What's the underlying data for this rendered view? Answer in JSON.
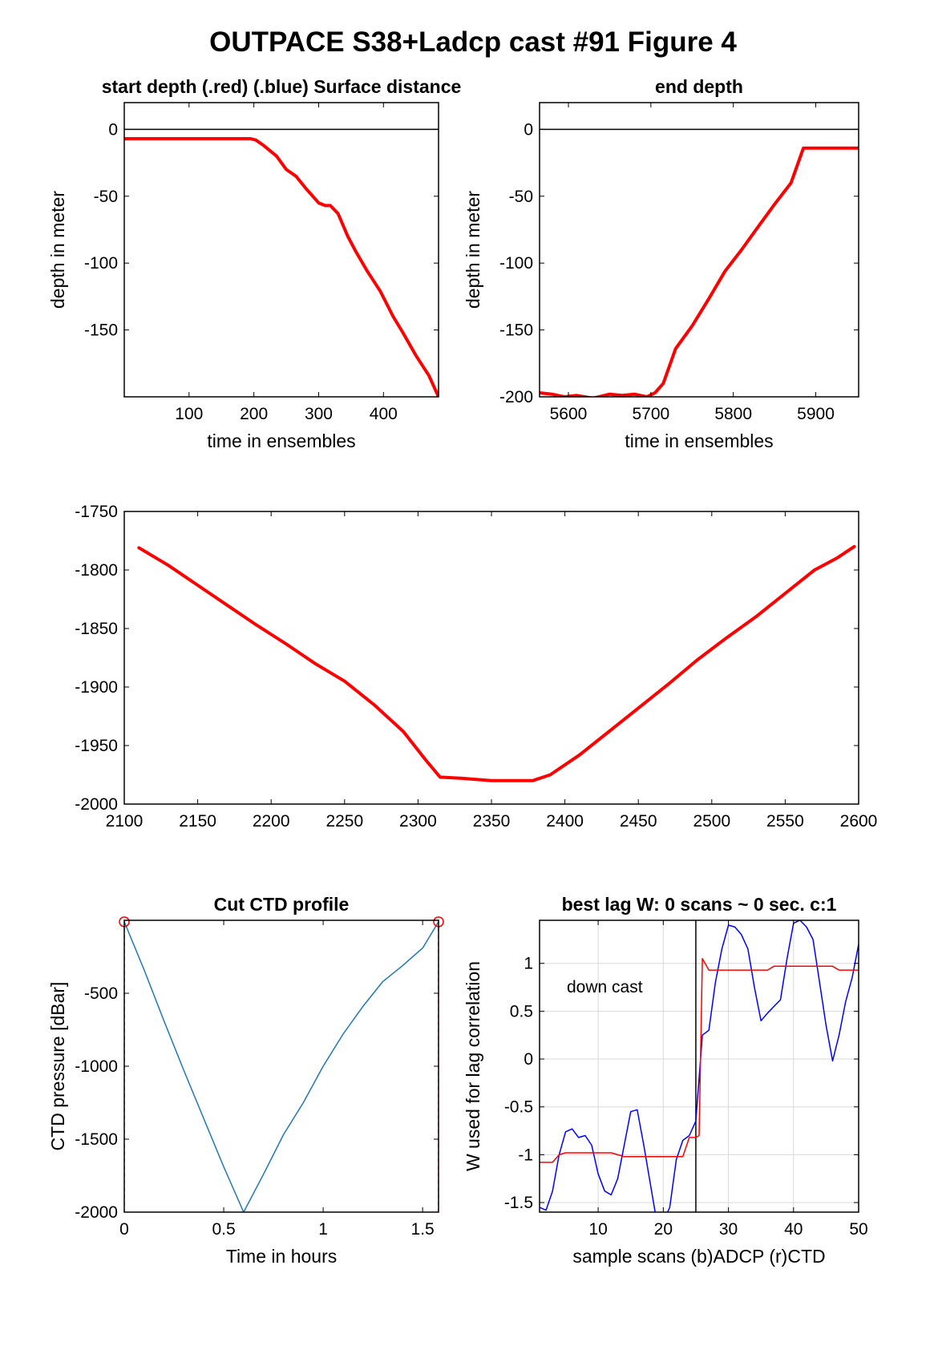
{
  "figure": {
    "title": "OUTPACE S38+Ladcp cast #91   Figure 4"
  },
  "chart_data": [
    {
      "id": "p1",
      "type": "line",
      "title": "start depth (.red) (.blue) Surface distance",
      "xlabel": "time in ensembles",
      "ylabel": "depth in meter",
      "xlim": [
        0,
        485
      ],
      "ylim": [
        -200,
        20
      ],
      "xticks": [
        100,
        200,
        300,
        400
      ],
      "yticks": [
        0,
        -50,
        -100,
        -150
      ],
      "grid": false,
      "reference_line_y": 0,
      "series": [
        {
          "color": "#ff0000",
          "width": 4,
          "x": [
            0,
            60,
            120,
            180,
            195,
            203,
            215,
            235,
            250,
            265,
            280,
            300,
            310,
            318,
            330,
            345,
            358,
            375,
            395,
            415,
            430,
            450,
            470,
            485
          ],
          "y": [
            -7,
            -7,
            -7,
            -7,
            -7,
            -8,
            -12,
            -20,
            -30,
            -35,
            -44,
            -55,
            -57,
            -57,
            -63,
            -80,
            -92,
            -106,
            -121,
            -140,
            -152,
            -169,
            -184,
            -200
          ]
        }
      ]
    },
    {
      "id": "p2",
      "type": "line",
      "title": "end depth",
      "xlabel": "time in ensembles",
      "ylabel": "depth in meter",
      "xlim": [
        5565,
        5952
      ],
      "ylim": [
        -200,
        20
      ],
      "xticks": [
        5600,
        5700,
        5800,
        5900
      ],
      "yticks": [
        0,
        -50,
        -100,
        -150,
        -200
      ],
      "grid": false,
      "reference_line_y": 0,
      "series": [
        {
          "color": "#ff0000",
          "width": 4,
          "x": [
            5565,
            5580,
            5595,
            5610,
            5630,
            5650,
            5665,
            5680,
            5695,
            5705,
            5715,
            5730,
            5750,
            5770,
            5790,
            5810,
            5830,
            5850,
            5870,
            5885,
            5900,
            5930,
            5952
          ],
          "y": [
            -197,
            -198,
            -200,
            -199,
            -201,
            -198,
            -199,
            -198,
            -200,
            -197,
            -190,
            -164,
            -147,
            -127,
            -106,
            -90,
            -73,
            -56,
            -40,
            -14,
            -14,
            -14,
            -14
          ]
        }
      ]
    },
    {
      "id": "p3",
      "type": "line",
      "title": "",
      "xlabel": "",
      "ylabel": "",
      "xlim": [
        2100,
        2600
      ],
      "ylim": [
        -2000,
        -1750
      ],
      "xticks": [
        2100,
        2150,
        2200,
        2250,
        2300,
        2350,
        2400,
        2450,
        2500,
        2550,
        2600
      ],
      "yticks": [
        -1750,
        -1800,
        -1850,
        -1900,
        -1950,
        -2000
      ],
      "grid": false,
      "series": [
        {
          "color": "#ff0000",
          "width": 4,
          "x": [
            2110,
            2130,
            2150,
            2170,
            2190,
            2210,
            2230,
            2250,
            2270,
            2290,
            2305,
            2315,
            2330,
            2350,
            2370,
            2378,
            2390,
            2410,
            2430,
            2450,
            2470,
            2490,
            2510,
            2530,
            2550,
            2570,
            2585,
            2597
          ],
          "y": [
            -1781,
            -1796,
            -1813,
            -1830,
            -1847,
            -1863,
            -1880,
            -1895,
            -1915,
            -1938,
            -1962,
            -1977,
            -1978,
            -1980,
            -1980,
            -1980,
            -1975,
            -1958,
            -1938,
            -1918,
            -1898,
            -1877,
            -1858,
            -1840,
            -1820,
            -1800,
            -1790,
            -1780
          ]
        }
      ]
    },
    {
      "id": "p4",
      "type": "line",
      "title": "Cut CTD profile",
      "xlabel": "Time in hours",
      "ylabel": "CTD pressure [dBar]",
      "xlim": [
        0,
        1.58
      ],
      "ylim": [
        -2000,
        0
      ],
      "xticks": [
        0,
        0.5,
        1,
        1.5
      ],
      "yticks": [
        -500,
        -1000,
        -1500,
        -2000
      ],
      "grid": false,
      "cut_lines_x": [
        0,
        1.58
      ],
      "cut_markers": [
        {
          "x": 0,
          "y": -10
        },
        {
          "x": 1.58,
          "y": -10
        }
      ],
      "series": [
        {
          "color": "#1f77b4",
          "width": 1.5,
          "x": [
            0,
            0.1,
            0.2,
            0.3,
            0.4,
            0.5,
            0.6,
            0.7,
            0.8,
            0.9,
            1.0,
            1.1,
            1.2,
            1.3,
            1.4,
            1.5,
            1.58
          ],
          "y": [
            -10,
            -340,
            -690,
            -1030,
            -1360,
            -1690,
            -2000,
            -1740,
            -1470,
            -1250,
            -1000,
            -780,
            -590,
            -420,
            -310,
            -190,
            -10
          ]
        }
      ]
    },
    {
      "id": "p5",
      "type": "line",
      "title": "best lag W: 0 scans ~ 0 sec.  c:1",
      "xlabel": "sample scans (b)ADCP (r)CTD",
      "ylabel": "W used for lag correlation",
      "xlim": [
        1,
        50
      ],
      "ylim": [
        -1.6,
        1.45
      ],
      "xticks": [
        10,
        20,
        30,
        40,
        50
      ],
      "yticks": [
        1,
        0.5,
        0,
        -0.5,
        -1,
        -1.5
      ],
      "grid": true,
      "vline_x": 25,
      "annotation": "down cast",
      "series": [
        {
          "name": "(b)ADCP",
          "color": "#0000ff",
          "width": 1.5,
          "x": [
            1,
            2,
            3,
            4,
            5,
            6,
            7,
            8,
            9,
            10,
            11,
            12,
            13,
            14,
            15,
            16,
            17,
            18,
            19,
            20,
            21,
            22,
            23,
            24,
            25,
            26,
            27,
            28,
            29,
            30,
            31,
            32,
            33,
            34,
            35,
            36,
            37,
            38,
            39,
            40,
            41,
            42,
            43,
            44,
            45,
            46,
            47,
            48,
            49,
            50
          ],
          "y": [
            -1.55,
            -1.58,
            -1.38,
            -1.0,
            -0.76,
            -0.73,
            -0.82,
            -0.8,
            -0.9,
            -1.2,
            -1.38,
            -1.42,
            -1.25,
            -0.9,
            -0.55,
            -0.53,
            -0.9,
            -1.3,
            -1.7,
            -1.7,
            -1.55,
            -1.05,
            -0.85,
            -0.8,
            -0.65,
            0.25,
            0.3,
            0.8,
            1.15,
            1.4,
            1.38,
            1.3,
            1.15,
            0.75,
            0.4,
            0.48,
            0.55,
            0.62,
            1.05,
            1.42,
            1.45,
            1.38,
            1.25,
            0.8,
            0.35,
            -0.02,
            0.25,
            0.6,
            0.85,
            1.2
          ]
        },
        {
          "name": "(r)CTD",
          "color": "#ff0000",
          "width": 1.5,
          "x": [
            1,
            2,
            3,
            4,
            5,
            6,
            7,
            8,
            9,
            10,
            11,
            12,
            13,
            14,
            15,
            16,
            17,
            18,
            19,
            20,
            21,
            22,
            23,
            24,
            25,
            25.5,
            26,
            27,
            28,
            29,
            30,
            31,
            32,
            33,
            34,
            35,
            36,
            37,
            38,
            39,
            40,
            41,
            42,
            43,
            44,
            45,
            46,
            47,
            48,
            49,
            50
          ],
          "y": [
            -1.08,
            -1.08,
            -1.08,
            -1.0,
            -0.98,
            -0.98,
            -0.98,
            -0.98,
            -0.98,
            -0.98,
            -0.98,
            -0.98,
            -1.0,
            -1.02,
            -1.02,
            -1.02,
            -1.02,
            -1.02,
            -1.02,
            -1.02,
            -1.02,
            -1.02,
            -1.02,
            -0.82,
            -0.82,
            -0.8,
            1.05,
            0.93,
            0.93,
            0.93,
            0.93,
            0.93,
            0.93,
            0.93,
            0.93,
            0.93,
            0.93,
            0.97,
            0.97,
            0.97,
            0.97,
            0.97,
            0.97,
            0.97,
            0.97,
            0.97,
            0.97,
            0.93,
            0.93,
            0.93,
            0.93
          ]
        }
      ]
    }
  ]
}
